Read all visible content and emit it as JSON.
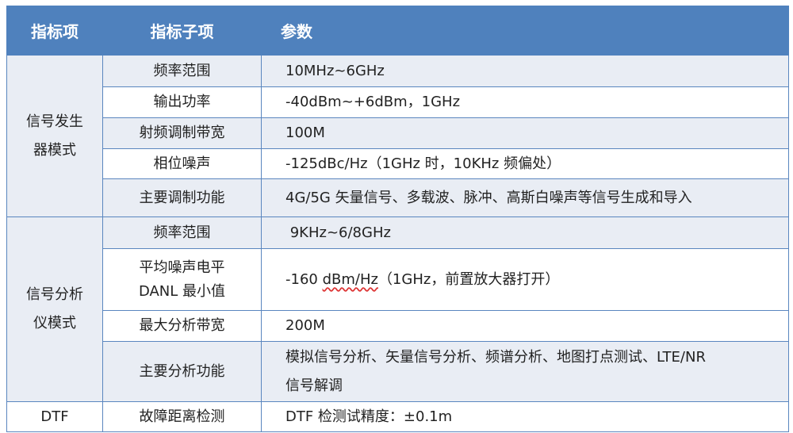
{
  "header": {
    "col1": "指标项",
    "col2": "指标子项",
    "col3": "参数"
  },
  "groups": [
    {
      "name": [
        "信号发生",
        "器模式"
      ],
      "rows": [
        {
          "sub": "频率范围",
          "param": "10MHz~6GHz"
        },
        {
          "sub": "输出功率",
          "param": "-40dBm~+6dBm，1GHz"
        },
        {
          "sub": "射频调制带宽",
          "param": "100M"
        },
        {
          "sub": "相位噪声",
          "param": "-125dBc/Hz（1GHz 时，10KHz 频偏处）"
        },
        {
          "sub": "主要调制功能",
          "param": "4G/5G 矢量信号、多载波、脉冲、高斯白噪声等信号生成和导入"
        }
      ]
    },
    {
      "name": [
        "信号分析",
        "仪模式"
      ],
      "rows": [
        {
          "sub": "频率范围",
          "param": " 9KHz~6/8GHz"
        },
        {
          "sub": [
            "平均噪声电平",
            "DANL 最小值"
          ],
          "param": [
            "-160 ",
            "dBm/Hz",
            "（1GHz，前置放大器打开）"
          ]
        },
        {
          "sub": "最大分析带宽",
          "param": "200M"
        },
        {
          "sub": "主要分析功能",
          "param": [
            "模拟信号分析、矢量信号分析、频谱分析、地图打点测试、LTE/NR",
            "信号解调"
          ]
        }
      ]
    },
    {
      "name": [
        "DTF"
      ],
      "rows": [
        {
          "sub": "故障距离检测",
          "param": "DTF 检测试精度：±0.1m"
        }
      ]
    }
  ],
  "colors": {
    "header": "#4f81bd",
    "border": "#5a86bf",
    "shade": "#e9edf4"
  }
}
